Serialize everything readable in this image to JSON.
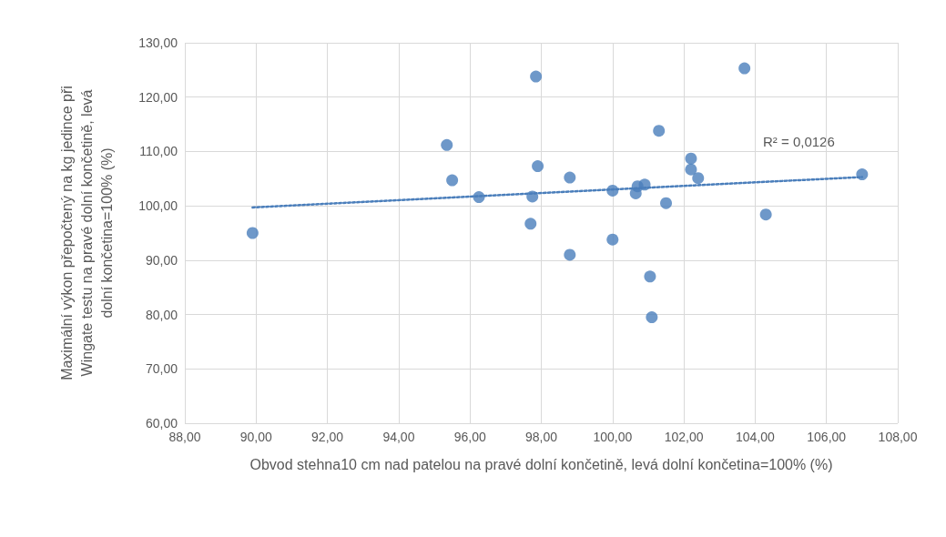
{
  "chart_data": {
    "type": "scatter",
    "xlabel": "Obvod stehna10 cm nad patelou na pravé dolní končetině, levá dolní končetina=100% (%)",
    "ylabel": "Maximální výkon přepočtený na kg jedince při Wingate testu na pravé dolní končetině, levá dolní končetina=100% (%)",
    "series": [
      {
        "color": "#4a7ebb",
        "marker": "circle",
        "x": [
          89.9,
          95.35,
          95.5,
          96.25,
          97.7,
          97.75,
          97.85,
          97.9,
          98.8,
          98.8,
          100.0,
          100.0,
          100.65,
          100.7,
          100.9,
          101.05,
          101.1,
          101.3,
          101.5,
          102.2,
          102.2,
          102.4,
          103.7,
          104.3,
          107.0
        ],
        "values": [
          95.0,
          111.2,
          104.7,
          101.6,
          96.7,
          101.7,
          123.8,
          107.3,
          105.2,
          91.0,
          102.8,
          93.8,
          102.3,
          103.6,
          103.9,
          87.0,
          79.5,
          113.8,
          100.5,
          108.7,
          106.7,
          105.1,
          125.3,
          98.4,
          105.8
        ]
      },
      {
        "type": "line",
        "color": "#4a7ebb",
        "line_style": "dotted",
        "marker": "none",
        "x": [
          89.9,
          107.0
        ],
        "values": [
          99.7,
          105.3
        ]
      }
    ],
    "annotations": [
      "R² = 0,0126"
    ],
    "xlim": [
      88,
      108
    ],
    "xticks": [
      {
        "value": 88,
        "label": "88,00"
      },
      {
        "value": 90,
        "label": "90,00"
      },
      {
        "value": 92,
        "label": "92,00"
      },
      {
        "value": 94,
        "label": "94,00"
      },
      {
        "value": 96,
        "label": "96,00"
      },
      {
        "value": 98,
        "label": "98,00"
      },
      {
        "value": 100,
        "label": "100,00"
      },
      {
        "value": 102,
        "label": "102,00"
      },
      {
        "value": 104,
        "label": "104,00"
      },
      {
        "value": 106,
        "label": "106,00"
      },
      {
        "value": 108,
        "label": "108,00"
      }
    ],
    "ylim": [
      60,
      130
    ],
    "yticks": [
      {
        "value": 60,
        "label": "60,00"
      },
      {
        "value": 70,
        "label": "70,00"
      },
      {
        "value": 80,
        "label": "80,00"
      },
      {
        "value": 90,
        "label": "90,00"
      },
      {
        "value": 100,
        "label": "100,00"
      },
      {
        "value": 110,
        "label": "110,00"
      },
      {
        "value": 120,
        "label": "120,00"
      },
      {
        "value": 130,
        "label": "130,00"
      }
    ],
    "grid": true
  }
}
